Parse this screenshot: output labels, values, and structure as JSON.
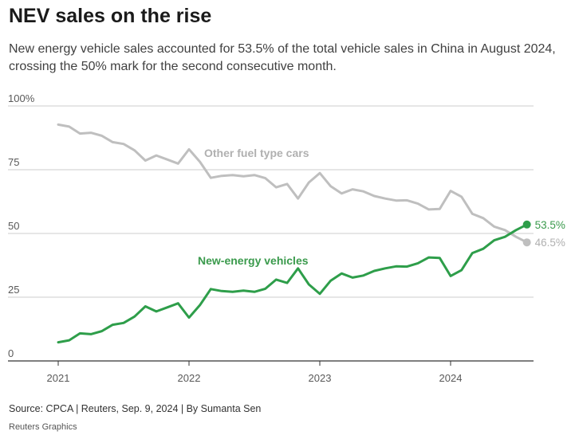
{
  "title": "NEV sales on the rise",
  "subtitle": "New energy vehicle sales accounted for 53.5% of the total vehicle sales in China in August 2024, crossing the 50% mark for the second consecutive month.",
  "source": "Source: CPCA | Reuters, Sep. 9, 2024 | By Sumanta Sen",
  "credit": "Reuters Graphics",
  "colors": {
    "nev": "#2e9e4a",
    "nev_label": "#3a9a4c",
    "other": "#bfbfbf",
    "other_label": "#b0b0b0",
    "grid": "#cccccc",
    "axis": "#333333",
    "tick_text": "#595959"
  },
  "chart_data": {
    "type": "line",
    "xlabel": "",
    "ylabel": "",
    "ylim": [
      0,
      100
    ],
    "y_ticks": [
      0,
      25,
      50,
      75,
      100
    ],
    "y_tick_labels": [
      "0",
      "25",
      "50",
      "75",
      "100%"
    ],
    "x_ticks": [
      2021,
      2022,
      2023,
      2024
    ],
    "x_tick_labels": [
      "2021",
      "2022",
      "2023",
      "2024"
    ],
    "x_start": "2021-01",
    "x_end": "2024-08",
    "grid": true,
    "x": [
      "2021-01",
      "2021-02",
      "2021-03",
      "2021-04",
      "2021-05",
      "2021-06",
      "2021-07",
      "2021-08",
      "2021-09",
      "2021-10",
      "2021-11",
      "2021-12",
      "2022-01",
      "2022-02",
      "2022-03",
      "2022-04",
      "2022-05",
      "2022-06",
      "2022-07",
      "2022-08",
      "2022-09",
      "2022-10",
      "2022-11",
      "2022-12",
      "2023-01",
      "2023-02",
      "2023-03",
      "2023-04",
      "2023-05",
      "2023-06",
      "2023-07",
      "2023-08",
      "2023-09",
      "2023-10",
      "2023-11",
      "2023-12",
      "2024-01",
      "2024-02",
      "2024-03",
      "2024-04",
      "2024-05",
      "2024-06",
      "2024-07",
      "2024-08"
    ],
    "series": [
      {
        "name": "New-energy vehicles",
        "end_label": "53.5%",
        "values": [
          7.3,
          8.1,
          10.8,
          10.5,
          11.7,
          14.2,
          14.9,
          17.4,
          21.4,
          19.4,
          21.0,
          22.6,
          17.0,
          21.9,
          28.2,
          27.4,
          27.1,
          27.6,
          27.1,
          28.3,
          31.9,
          30.6,
          36.3,
          30.0,
          26.3,
          31.5,
          34.3,
          32.7,
          33.5,
          35.3,
          36.3,
          37.1,
          37.0,
          38.3,
          40.6,
          40.4,
          33.3,
          35.6,
          42.3,
          44.0,
          47.3,
          48.7,
          51.3,
          53.5
        ]
      },
      {
        "name": "Other fuel type cars",
        "end_label": "46.5%",
        "values": [
          92.7,
          91.9,
          89.2,
          89.5,
          88.3,
          85.8,
          85.1,
          82.6,
          78.6,
          80.6,
          79.0,
          77.4,
          83.0,
          78.1,
          71.8,
          72.6,
          72.9,
          72.4,
          72.9,
          71.7,
          68.1,
          69.4,
          63.7,
          70.0,
          73.7,
          68.5,
          65.7,
          67.3,
          66.5,
          64.7,
          63.7,
          62.9,
          63.0,
          61.7,
          59.4,
          59.6,
          66.7,
          64.4,
          57.7,
          56.0,
          52.7,
          51.3,
          48.7,
          46.5
        ]
      }
    ]
  }
}
